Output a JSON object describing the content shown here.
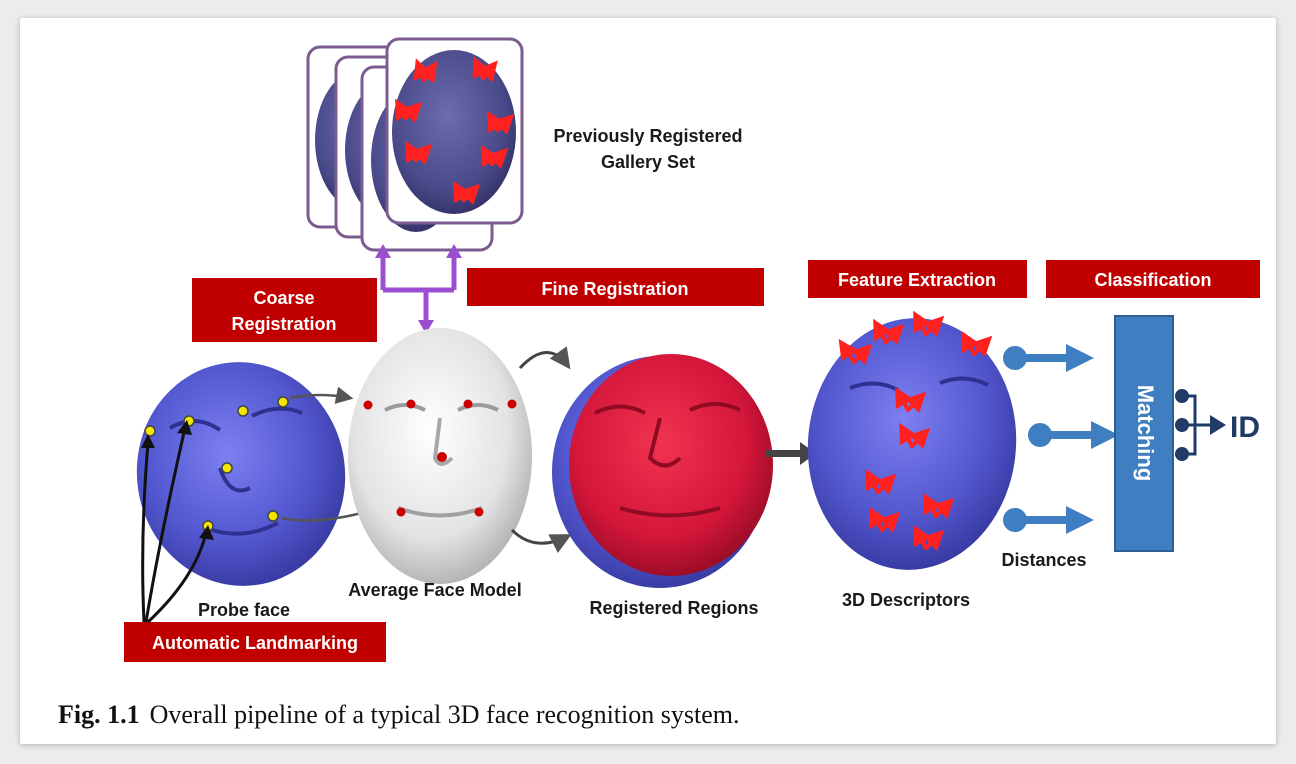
{
  "labels": {
    "gallery_line1": "Previously Registered",
    "gallery_line2": "Gallery Set",
    "probe_face": "Probe face",
    "average_face": "Average Face  Model",
    "registered_regions": "Registered Regions",
    "descriptors": "3D Descriptors",
    "distances": "Distances",
    "matching": "Matching",
    "id": "ID"
  },
  "stages": {
    "coarse_line1": "Coarse",
    "coarse_line2": "Registration",
    "fine": "Fine Registration",
    "feature": "Feature Extraction",
    "classification": "Classification",
    "landmarking": "Automatic Landmarking"
  },
  "caption": {
    "number": "Fig. 1.1",
    "text": "Overall pipeline of a typical 3D face recognition system."
  },
  "colors": {
    "stage_red": "#c00000",
    "probe_blue": "#5b5fd6",
    "registered_red": "#d4163a",
    "gallery_purple": "#4a4a8a",
    "frame_purple": "#7a5c8e",
    "arrow_purple": "#9b4fd0",
    "matching_blue": "#3f7fc1",
    "landmark_yellow": "#f2e600",
    "landmark_red": "#cc0000"
  }
}
